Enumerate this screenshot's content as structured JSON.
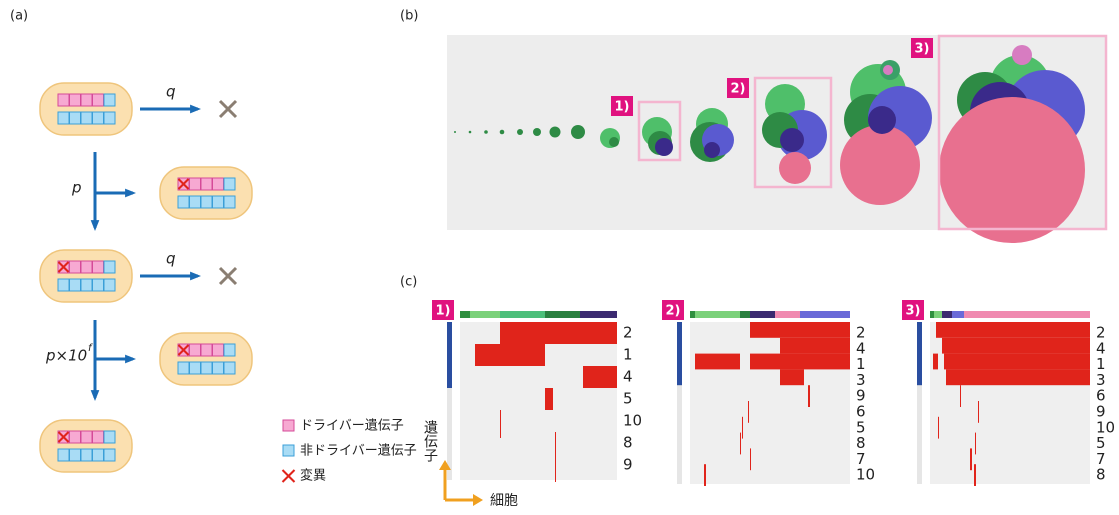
{
  "panel_labels": [
    "(a)",
    "(b)",
    "(c)"
  ],
  "panel_a": {
    "rates": [
      {
        "label": "q"
      },
      {
        "label": "p"
      },
      {
        "label": "q"
      },
      {
        "label": "p×10",
        "sup": "f"
      }
    ],
    "legend": [
      "ドライバー遺伝子",
      "非ドライバー遺伝子",
      "変異"
    ]
  },
  "panel_b": {
    "markers": [
      "1)",
      "2)",
      "3)"
    ]
  },
  "panel_c": {
    "heatmaps": [
      {
        "marker": "1)",
        "genes": [
          2,
          1,
          4,
          5,
          10,
          8,
          9
        ]
      },
      {
        "marker": "2)",
        "genes": [
          2,
          4,
          1,
          3,
          9,
          6,
          5,
          8,
          7,
          10
        ]
      },
      {
        "marker": "3)",
        "genes": [
          2,
          4,
          1,
          3,
          6,
          9,
          10,
          5,
          7,
          8
        ]
      }
    ],
    "y_label": "遺伝子",
    "x_label": "細胞"
  }
}
